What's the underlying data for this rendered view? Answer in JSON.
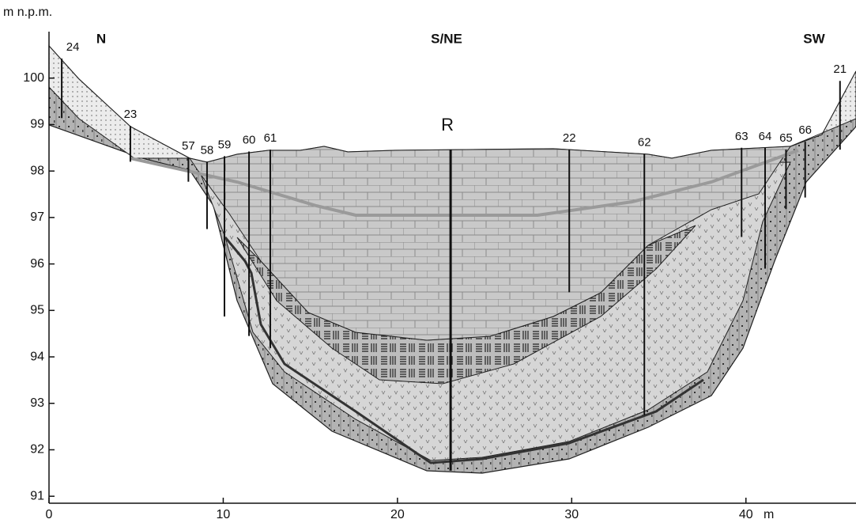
{
  "header": {
    "y_axis_label": "m n.p.m.",
    "x_unit": "m",
    "directions": [
      "N",
      "S/NE",
      "SW"
    ]
  },
  "axes": {
    "xlim": [
      0,
      46
    ],
    "ylim": [
      90.85,
      101
    ],
    "xticks": [
      0,
      10,
      20,
      30,
      40
    ],
    "yticks": [
      91,
      92,
      93,
      94,
      95,
      96,
      97,
      98,
      99,
      100
    ]
  },
  "section_line": {
    "label": "R",
    "x": 23.05,
    "top": 98.46,
    "bottom": 91.55
  },
  "boreholes": [
    {
      "label": "24",
      "x": 0.73,
      "top": 100.42,
      "bottom": 99.14
    },
    {
      "label": "23",
      "x": 4.67,
      "top": 98.97,
      "bottom": 98.2
    },
    {
      "label": "57",
      "x": 8.0,
      "top": 98.29,
      "bottom": 97.77
    },
    {
      "label": "58",
      "x": 9.07,
      "top": 98.2,
      "bottom": 96.75
    },
    {
      "label": "59",
      "x": 10.07,
      "top": 98.32,
      "bottom": 94.87
    },
    {
      "label": "60",
      "x": 11.48,
      "top": 98.42,
      "bottom": 94.45
    },
    {
      "label": "61",
      "x": 12.7,
      "top": 98.46,
      "bottom": 94.19
    },
    {
      "label": "22",
      "x": 29.86,
      "top": 98.46,
      "bottom": 95.39
    },
    {
      "label": "62",
      "x": 34.17,
      "top": 98.37,
      "bottom": 92.74
    },
    {
      "label": "63",
      "x": 39.75,
      "top": 98.5,
      "bottom": 96.58
    },
    {
      "label": "64",
      "x": 41.1,
      "top": 98.5,
      "bottom": 95.9
    },
    {
      "label": "65",
      "x": 42.3,
      "top": 98.46,
      "bottom": 97.18
    },
    {
      "label": "66",
      "x": 43.4,
      "top": 98.63,
      "bottom": 97.43
    },
    {
      "label": "21",
      "x": 45.4,
      "top": 99.94,
      "bottom": 98.46
    }
  ]
}
